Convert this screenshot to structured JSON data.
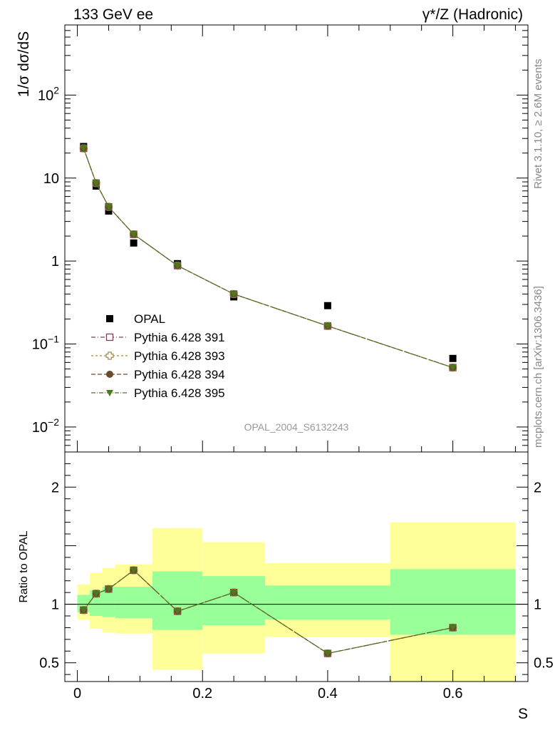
{
  "header": {
    "left": "133 GeV ee",
    "right": "γ*/Z (Hadronic)"
  },
  "side_text": {
    "rivet": "Rivet 3.1.10, ≥ 2.6M events",
    "mcplots": "mcplots.cern.ch [arXiv:1306.3436]"
  },
  "watermark": "OPAL_2004_S6132243",
  "colors": {
    "data": "#000000",
    "p391": "#7b3f5e",
    "p393": "#a08a4a",
    "p394": "#6b4a2a",
    "p395": "#4a7a1a",
    "band_outer": "#ffff99",
    "band_inner": "#99ff99"
  },
  "chart_data": [
    {
      "type": "scatter",
      "panel": "main",
      "ylabel": "1/σ dσ/dS",
      "yscale": "log",
      "ylim": [
        0.005,
        700
      ],
      "xlim": [
        -0.02,
        0.72
      ],
      "ytick_labels": [
        "10^-2",
        "10^-1",
        "1",
        "10",
        "10^2"
      ],
      "ytick_values": [
        0.01,
        0.1,
        1,
        10,
        100
      ],
      "legend": [
        "OPAL",
        "Pythia 6.428 391",
        "Pythia 6.428 393",
        "Pythia 6.428 394",
        "Pythia 6.428 395"
      ],
      "x": [
        0.01,
        0.03,
        0.05,
        0.09,
        0.16,
        0.25,
        0.4,
        0.6
      ],
      "series": [
        {
          "name": "OPAL",
          "values": [
            24.0,
            8.0,
            4.0,
            1.65,
            0.93,
            0.37,
            0.29,
            0.067
          ]
        },
        {
          "name": "Pythia 6.428 391",
          "values": [
            22.8,
            8.7,
            4.5,
            2.1,
            0.88,
            0.4,
            0.165,
            0.052
          ]
        },
        {
          "name": "Pythia 6.428 393",
          "values": [
            22.8,
            8.7,
            4.5,
            2.1,
            0.88,
            0.4,
            0.165,
            0.052
          ]
        },
        {
          "name": "Pythia 6.428 394",
          "values": [
            22.8,
            8.7,
            4.5,
            2.1,
            0.88,
            0.4,
            0.165,
            0.052
          ]
        },
        {
          "name": "Pythia 6.428 395",
          "values": [
            22.8,
            8.7,
            4.5,
            2.1,
            0.88,
            0.4,
            0.165,
            0.052
          ]
        }
      ]
    },
    {
      "type": "line",
      "panel": "ratio",
      "ylabel": "Ratio to OPAL",
      "xlabel": "S",
      "ylim": [
        0.34,
        2.3
      ],
      "xlim": [
        -0.02,
        0.72
      ],
      "ytick_labels": [
        "0.5",
        "1",
        "2"
      ],
      "ytick_values": [
        0.5,
        1,
        2
      ],
      "xtick_labels": [
        "0",
        "0.2",
        "0.4",
        "0.6"
      ],
      "xtick_values": [
        0,
        0.2,
        0.4,
        0.6
      ],
      "bins": [
        {
          "lo": 0.0,
          "hi": 0.02,
          "outer": [
            0.87,
            1.17
          ],
          "inner": [
            0.93,
            1.08
          ]
        },
        {
          "lo": 0.02,
          "hi": 0.04,
          "outer": [
            0.79,
            1.27
          ],
          "inner": [
            0.9,
            1.12
          ]
        },
        {
          "lo": 0.04,
          "hi": 0.06,
          "outer": [
            0.76,
            1.31
          ],
          "inner": [
            0.89,
            1.15
          ]
        },
        {
          "lo": 0.06,
          "hi": 0.12,
          "outer": [
            0.75,
            1.34
          ],
          "inner": [
            0.88,
            1.15
          ]
        },
        {
          "lo": 0.12,
          "hi": 0.2,
          "outer": [
            0.44,
            1.65
          ],
          "inner": [
            0.78,
            1.28
          ]
        },
        {
          "lo": 0.2,
          "hi": 0.3,
          "outer": [
            0.58,
            1.53
          ],
          "inner": [
            0.82,
            1.24
          ]
        },
        {
          "lo": 0.3,
          "hi": 0.5,
          "outer": [
            0.72,
            1.35
          ],
          "inner": [
            0.87,
            1.16
          ]
        },
        {
          "lo": 0.5,
          "hi": 0.7,
          "outer": [
            0.34,
            1.7
          ],
          "inner": [
            0.74,
            1.3
          ]
        }
      ],
      "x": [
        0.01,
        0.03,
        0.05,
        0.09,
        0.16,
        0.25,
        0.4,
        0.6
      ],
      "series": [
        {
          "name": "Pythia 6.428 391",
          "values": [
            0.95,
            1.09,
            1.13,
            1.29,
            0.94,
            1.1,
            0.58,
            0.8
          ]
        },
        {
          "name": "Pythia 6.428 393",
          "values": [
            0.95,
            1.09,
            1.13,
            1.29,
            0.94,
            1.1,
            0.58,
            0.8
          ]
        },
        {
          "name": "Pythia 6.428 394",
          "values": [
            0.95,
            1.09,
            1.13,
            1.29,
            0.94,
            1.1,
            0.58,
            0.8
          ]
        },
        {
          "name": "Pythia 6.428 395",
          "values": [
            0.95,
            1.09,
            1.13,
            1.29,
            0.94,
            1.1,
            0.58,
            0.8
          ]
        }
      ]
    }
  ]
}
